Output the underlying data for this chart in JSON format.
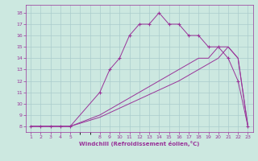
{
  "background_color": "#cce8e0",
  "line_color": "#993399",
  "grid_color": "#aacccc",
  "xlabel": "Windchill (Refroidissement éolien,°C)",
  "xlabel_color": "#993399",
  "x_ticks": [
    1,
    2,
    3,
    4,
    5,
    8,
    9,
    10,
    11,
    12,
    13,
    14,
    15,
    16,
    17,
    18,
    19,
    20,
    21,
    22,
    23
  ],
  "ylim": [
    7.5,
    18.7
  ],
  "xlim": [
    0.5,
    23.5
  ],
  "yticks": [
    8,
    9,
    10,
    11,
    12,
    13,
    14,
    15,
    16,
    17,
    18
  ],
  "series": [
    {
      "x": [
        1,
        2,
        3,
        4,
        5,
        8,
        9,
        10,
        11,
        12,
        13,
        14,
        15,
        16,
        17,
        18,
        19,
        20,
        21,
        22,
        23
      ],
      "y": [
        8,
        8,
        8,
        8,
        8,
        11,
        13,
        14,
        16,
        17,
        17,
        18,
        17,
        17,
        16,
        16,
        15,
        15,
        14,
        12,
        8
      ],
      "marker": "+"
    },
    {
      "x": [
        1,
        2,
        3,
        4,
        5,
        8,
        9,
        10,
        11,
        12,
        13,
        14,
        15,
        16,
        17,
        18,
        19,
        20,
        21,
        22,
        23
      ],
      "y": [
        8,
        8,
        8,
        8,
        8,
        9,
        9.5,
        10,
        10.5,
        11,
        11.5,
        12,
        12.5,
        13,
        13.5,
        14,
        14,
        15,
        15,
        14,
        8
      ],
      "marker": null
    },
    {
      "x": [
        1,
        2,
        3,
        4,
        5,
        8,
        9,
        10,
        11,
        12,
        13,
        14,
        15,
        16,
        17,
        18,
        19,
        20,
        21,
        22,
        23
      ],
      "y": [
        8,
        8,
        8,
        8,
        8,
        8.8,
        9.2,
        9.6,
        10,
        10.4,
        10.8,
        11.2,
        11.6,
        12,
        12.5,
        13,
        13.5,
        14,
        15,
        14,
        8
      ],
      "marker": null
    }
  ]
}
